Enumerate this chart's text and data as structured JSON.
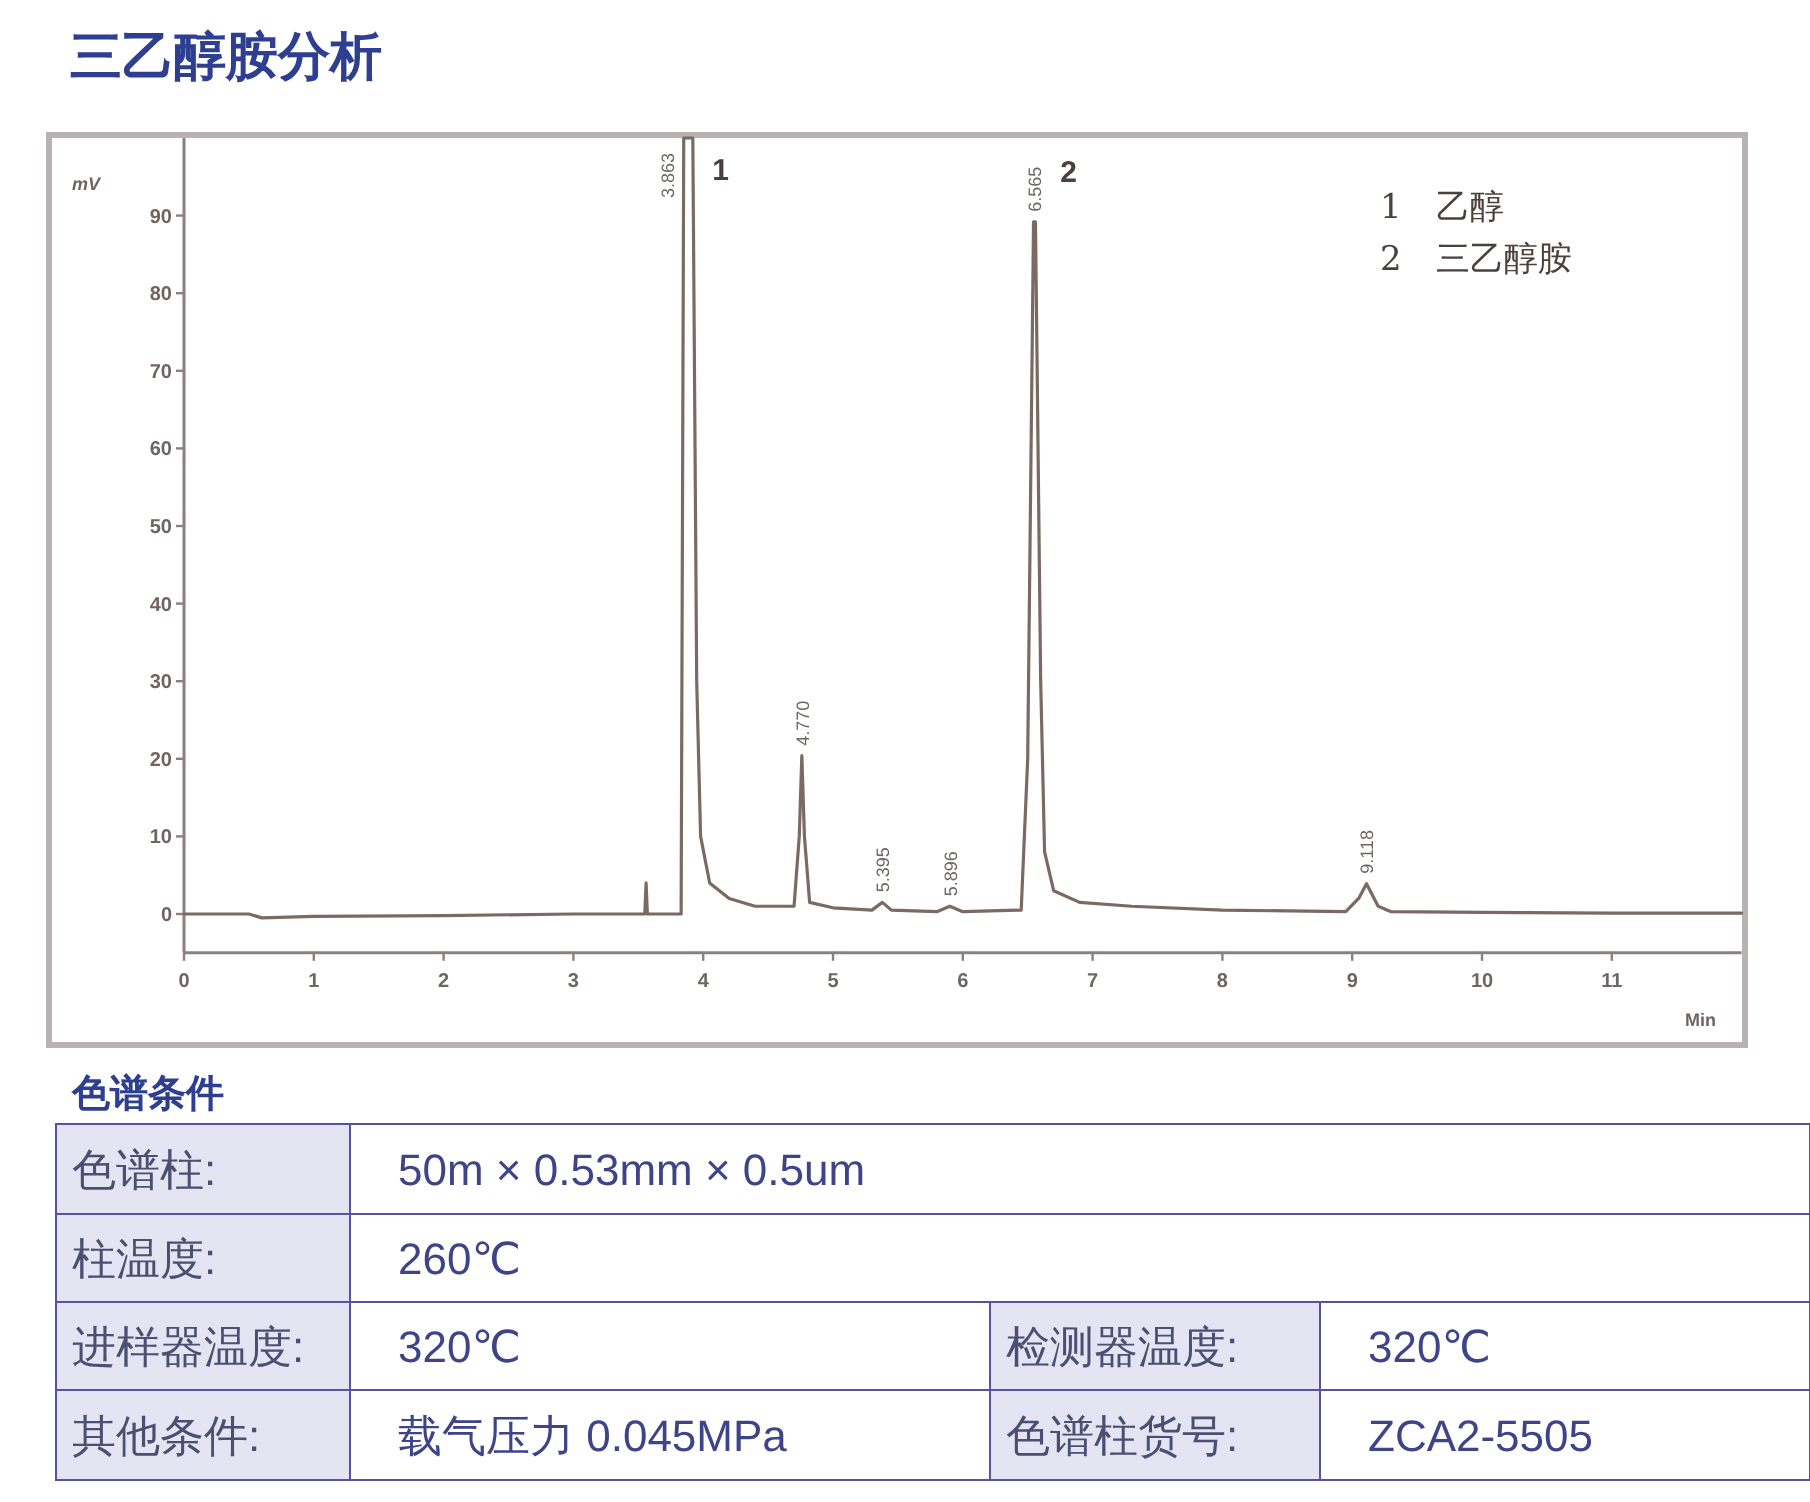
{
  "chart_data": {
    "type": "line",
    "title": "三乙醇胺分析",
    "xlabel": "Min",
    "ylabel": "mV",
    "xlim": [
      0,
      12
    ],
    "ylim": [
      -5,
      100
    ],
    "xticks": [
      0,
      1,
      2,
      3,
      4,
      5,
      6,
      7,
      8,
      9,
      10,
      11
    ],
    "yticks": [
      0,
      10,
      20,
      30,
      40,
      50,
      60,
      70,
      80,
      90
    ],
    "grid": false,
    "marker": "none",
    "line_style": "solid",
    "series": [
      {
        "color": "#7a6a63",
        "x": [
          0,
          0.5,
          0.6,
          1,
          2,
          3,
          3.55,
          3.56,
          3.57,
          3.83,
          3.85,
          3.92,
          3.95,
          3.98,
          4.05,
          4.2,
          4.4,
          4.7,
          4.74,
          4.76,
          4.78,
          4.82,
          5.0,
          5.3,
          5.38,
          5.45,
          5.8,
          5.9,
          6.0,
          6.45,
          6.5,
          6.545,
          6.56,
          6.6,
          6.63,
          6.7,
          6.9,
          7.3,
          8,
          8.95,
          9.05,
          9.11,
          9.2,
          9.3,
          10,
          11,
          12
        ],
        "values": [
          0,
          0,
          -0.5,
          -0.3,
          -0.2,
          0,
          0,
          4,
          0,
          0,
          100,
          100,
          30,
          10,
          4,
          2,
          1,
          1,
          10,
          20.4,
          10,
          1.5,
          0.8,
          0.5,
          1.5,
          0.5,
          0.3,
          1,
          0.3,
          0.5,
          20,
          89.2,
          89.2,
          30,
          8,
          3,
          1.5,
          1,
          0.5,
          0.3,
          2,
          3.9,
          1,
          0.3,
          0.2,
          0.1,
          0.1
        ]
      }
    ],
    "annotations": [
      {
        "text": "3.863",
        "x": 3.87,
        "y": 100
      },
      {
        "text": "4.770",
        "x": 4.76,
        "y": 20.4
      },
      {
        "text": "5.395",
        "x": 5.38,
        "y": 1.5
      },
      {
        "text": "5.896",
        "x": 5.9,
        "y": 1
      },
      {
        "text": "6.565",
        "x": 6.55,
        "y": 89.2
      },
      {
        "text": "9.118",
        "x": 9.11,
        "y": 3.9
      },
      {
        "text": "1",
        "x": 3.87,
        "y": 100
      },
      {
        "text": "2",
        "x": 6.55,
        "y": 89.2
      },
      "1　乙醇",
      "2　三乙醇胺",
      "色谱条件",
      "色谱柱:",
      "50m × 0.53mm × 0.5um",
      "柱温度:",
      "260℃",
      "进样器温度:",
      "320℃",
      "检测器温度:",
      "320℃",
      "其他条件:",
      "载气压力  0.045MPa",
      "色谱柱货号:",
      "ZCA2-5505"
    ]
  }
}
